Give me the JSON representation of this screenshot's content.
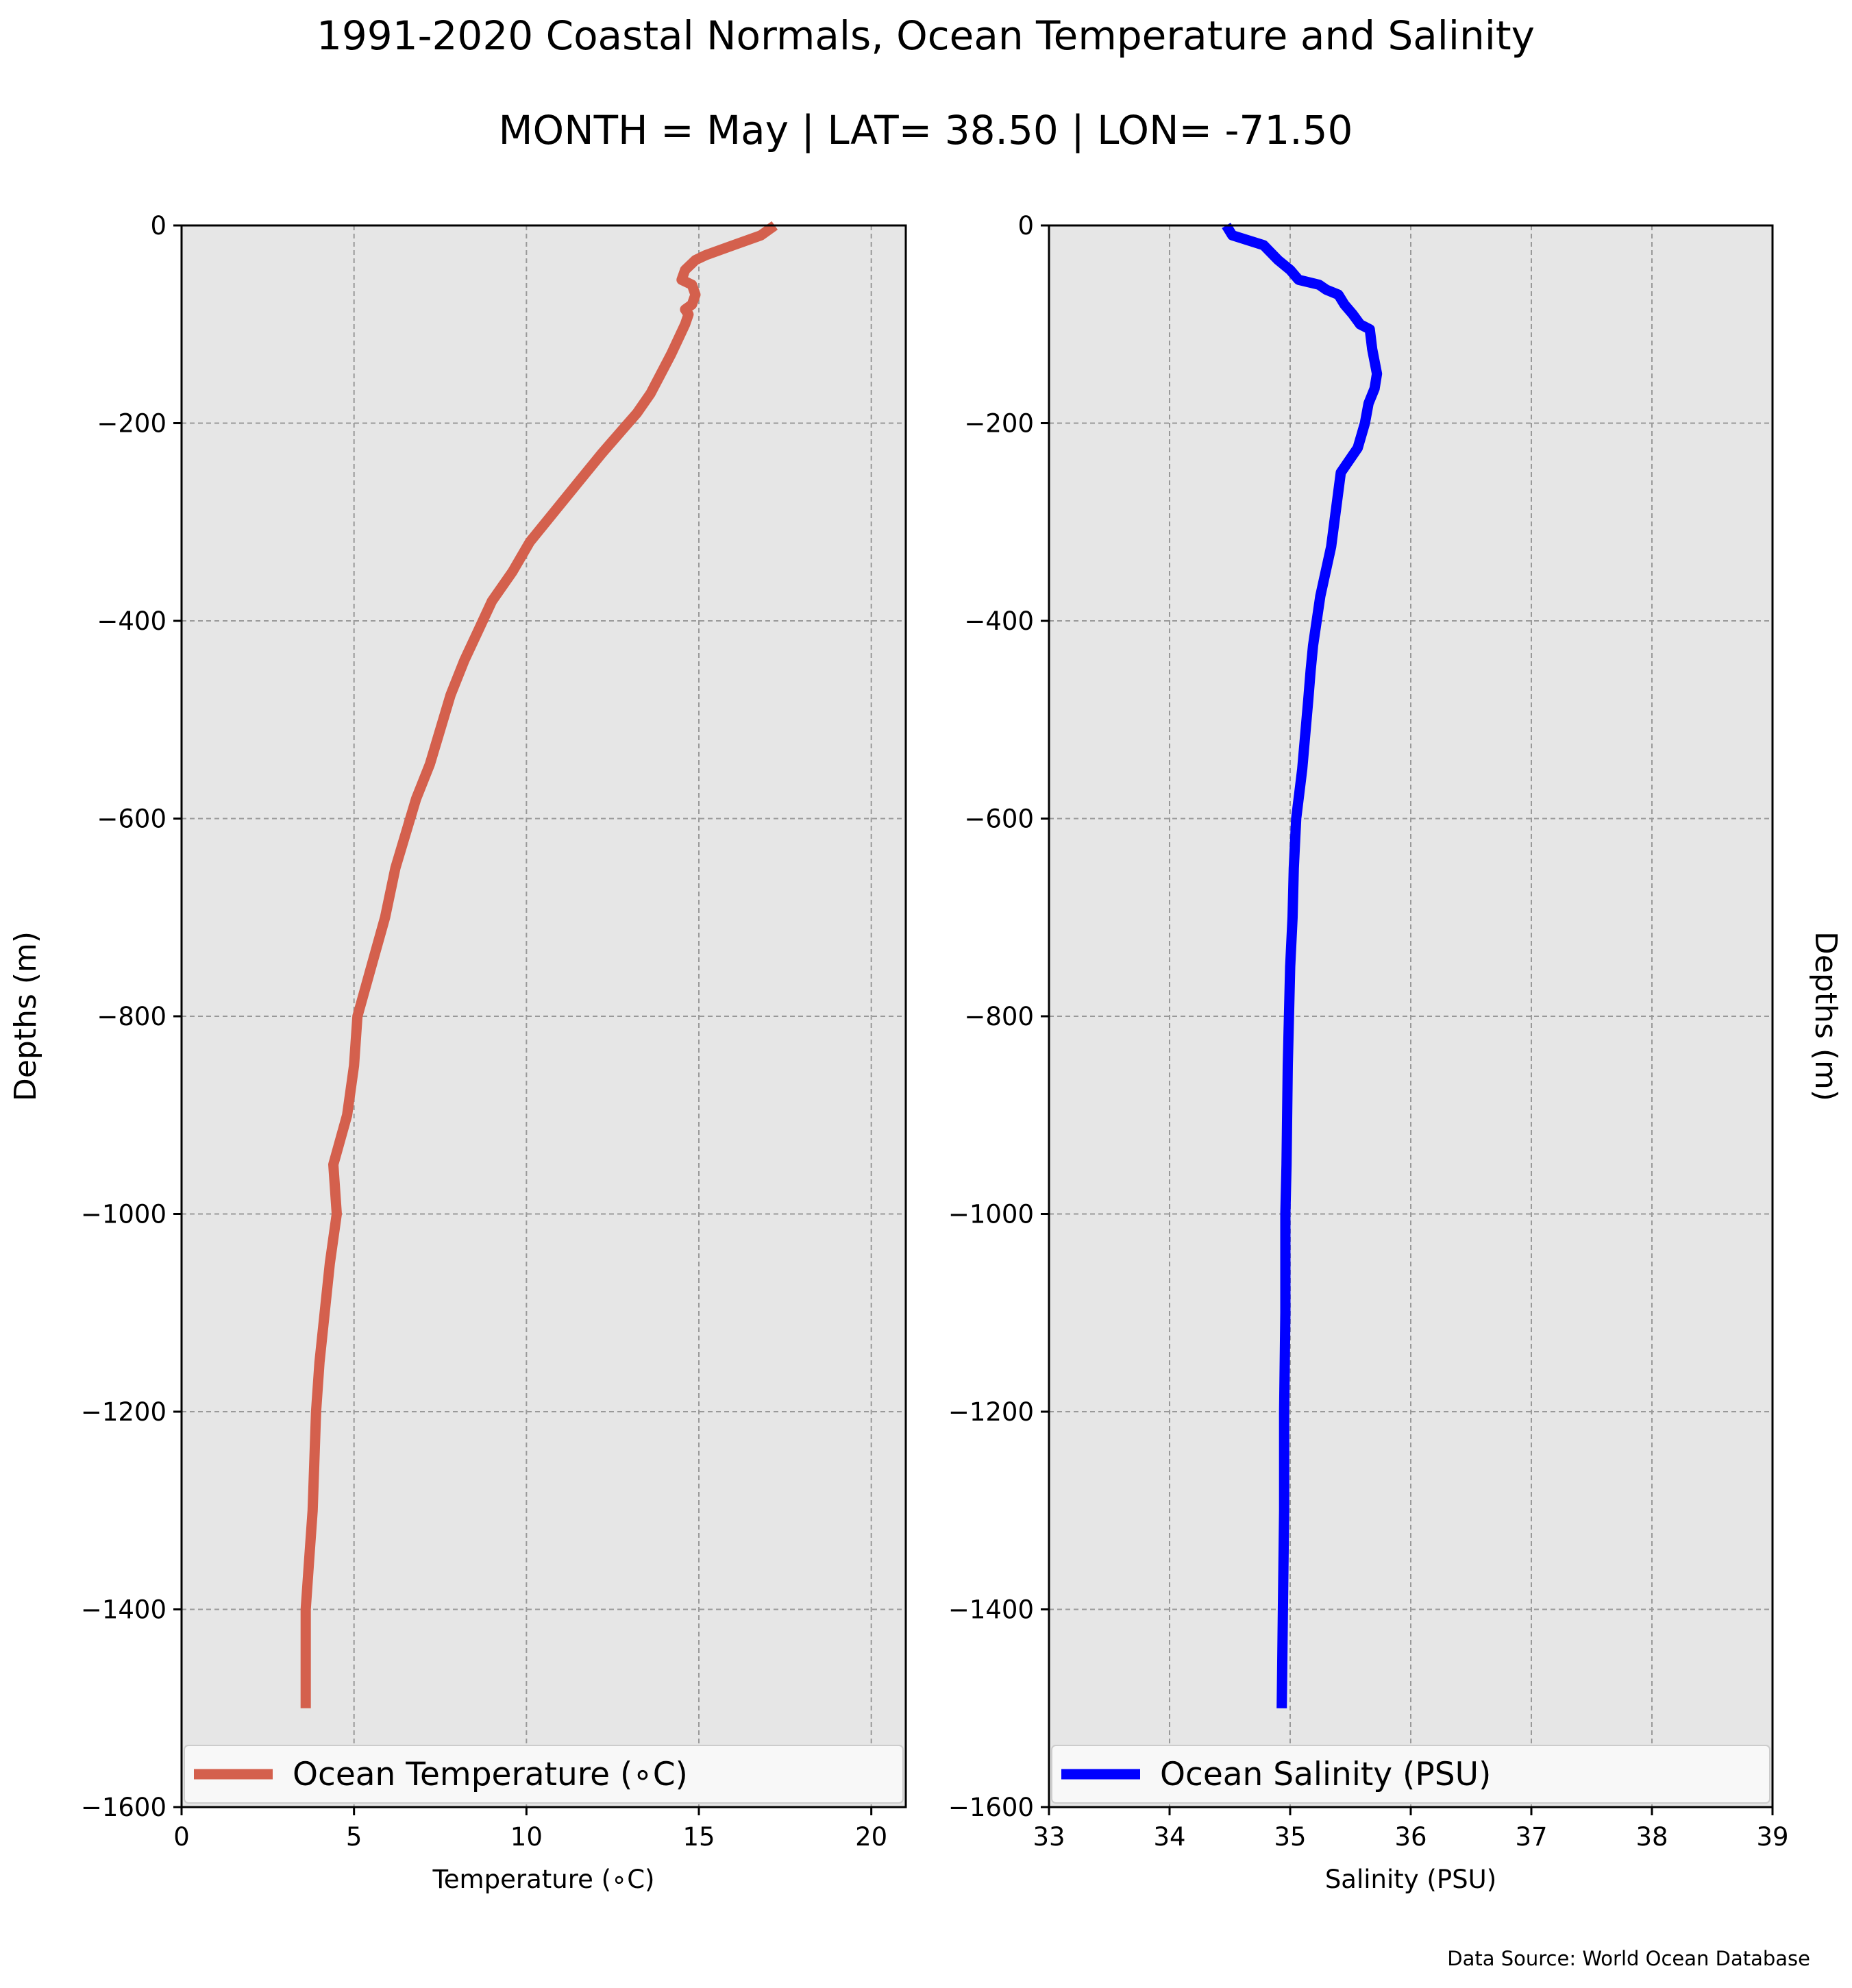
{
  "title": "1991-2020 Coastal Normals, Ocean Temperature and Salinity",
  "subtitle": "MONTH = May | LAT= 38.50 | LON= -71.50",
  "source": "Data Source: World Ocean Database",
  "colors": {
    "panel_bg": "#e6e6e6",
    "grid": "#999999",
    "temperature": "#d4604d",
    "salinity": "#0000ff"
  },
  "chart_data": [
    {
      "type": "line",
      "xlabel": "Temperature (∘C)",
      "ylabel": "Depths (m)",
      "xlim": [
        0,
        21
      ],
      "ylim": [
        -1600,
        0
      ],
      "xticks": [
        0,
        5,
        10,
        15,
        20
      ],
      "yticks": [
        0,
        -200,
        -400,
        -600,
        -800,
        -1000,
        -1200,
        -1400,
        -1600
      ],
      "grid": true,
      "legend_placement": "bottom",
      "series": [
        {
          "name": "Ocean Temperature (∘C)",
          "color": "#d4604d",
          "x": [
            17.2,
            16.8,
            16.0,
            15.2,
            14.9,
            14.6,
            14.5,
            14.8,
            14.9,
            14.8,
            14.6,
            14.7,
            14.6,
            14.4,
            14.2,
            13.9,
            13.6,
            13.2,
            12.7,
            12.2,
            11.5,
            10.8,
            10.1,
            9.6,
            9.0,
            8.6,
            8.2,
            7.8,
            7.5,
            7.2,
            6.8,
            6.5,
            6.2,
            5.9,
            5.5,
            5.1,
            5.0,
            4.8,
            4.4,
            4.5,
            4.3,
            4.0,
            3.9,
            3.8,
            3.7,
            3.6,
            3.6
          ],
          "y": [
            0,
            -10,
            -20,
            -30,
            -35,
            -45,
            -55,
            -60,
            -70,
            -80,
            -85,
            -90,
            -100,
            -115,
            -130,
            -150,
            -170,
            -190,
            -210,
            -230,
            -260,
            -290,
            -320,
            -350,
            -380,
            -410,
            -440,
            -475,
            -510,
            -545,
            -580,
            -615,
            -650,
            -700,
            -750,
            -800,
            -850,
            -900,
            -950,
            -1000,
            -1050,
            -1150,
            -1200,
            -1300,
            -1350,
            -1400,
            -1500
          ]
        }
      ]
    },
    {
      "type": "line",
      "xlabel": "Salinity (PSU)",
      "ylabel": "Depths (m)",
      "xlim": [
        33,
        39
      ],
      "ylim": [
        -1600,
        0
      ],
      "xticks": [
        33,
        34,
        35,
        36,
        37,
        38,
        39
      ],
      "yticks": [
        0,
        -200,
        -400,
        -600,
        -800,
        -1000,
        -1200,
        -1400,
        -1600
      ],
      "grid": true,
      "legend_placement": "bottom",
      "series": [
        {
          "name": "Ocean Salinity (PSU)",
          "color": "#0000ff",
          "x": [
            34.47,
            34.52,
            34.78,
            34.82,
            34.9,
            35.0,
            35.07,
            35.24,
            35.3,
            35.4,
            35.45,
            35.52,
            35.58,
            35.66,
            35.68,
            35.72,
            35.7,
            35.65,
            35.62,
            35.56,
            35.42,
            35.34,
            35.25,
            35.19,
            35.17,
            35.15,
            35.1,
            35.05,
            35.03,
            35.02,
            35.0,
            34.98,
            34.97,
            34.96,
            34.96,
            34.95,
            34.95,
            34.94,
            34.93
          ],
          "y": [
            0,
            -10,
            -20,
            -25,
            -35,
            -45,
            -55,
            -60,
            -65,
            -70,
            -80,
            -90,
            -100,
            -105,
            -125,
            -150,
            -165,
            -180,
            -200,
            -225,
            -250,
            -325,
            -375,
            -425,
            -450,
            -480,
            -550,
            -600,
            -650,
            -700,
            -750,
            -850,
            -950,
            -1000,
            -1100,
            -1200,
            -1300,
            -1400,
            -1500
          ]
        }
      ]
    }
  ]
}
